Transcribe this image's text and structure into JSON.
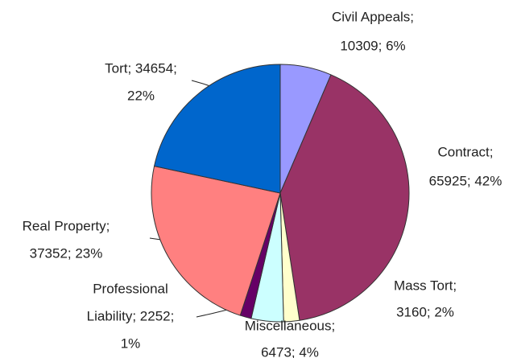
{
  "chart_data": {
    "type": "pie",
    "labels": [
      [
        "Civil Appeals;",
        "10309; 6%"
      ],
      [
        "Contract;",
        "65925; 42%"
      ],
      [
        "Mass Tort;",
        "3160; 2%"
      ],
      [
        "Miscellaneous;",
        "6473; 4%"
      ],
      [
        "Professional",
        "Liability; 2252;",
        "1%"
      ],
      [
        "Real Property;",
        "37352; 23%"
      ],
      [
        "Tort; 34654;",
        "22%"
      ]
    ],
    "values": [
      10309,
      65925,
      3160,
      6473,
      2252,
      37352,
      34654
    ],
    "colors": [
      "#9999ff",
      "#993366",
      "#ffffcc",
      "#ccffff",
      "#660066",
      "#ff8080",
      "#0066cc"
    ]
  }
}
